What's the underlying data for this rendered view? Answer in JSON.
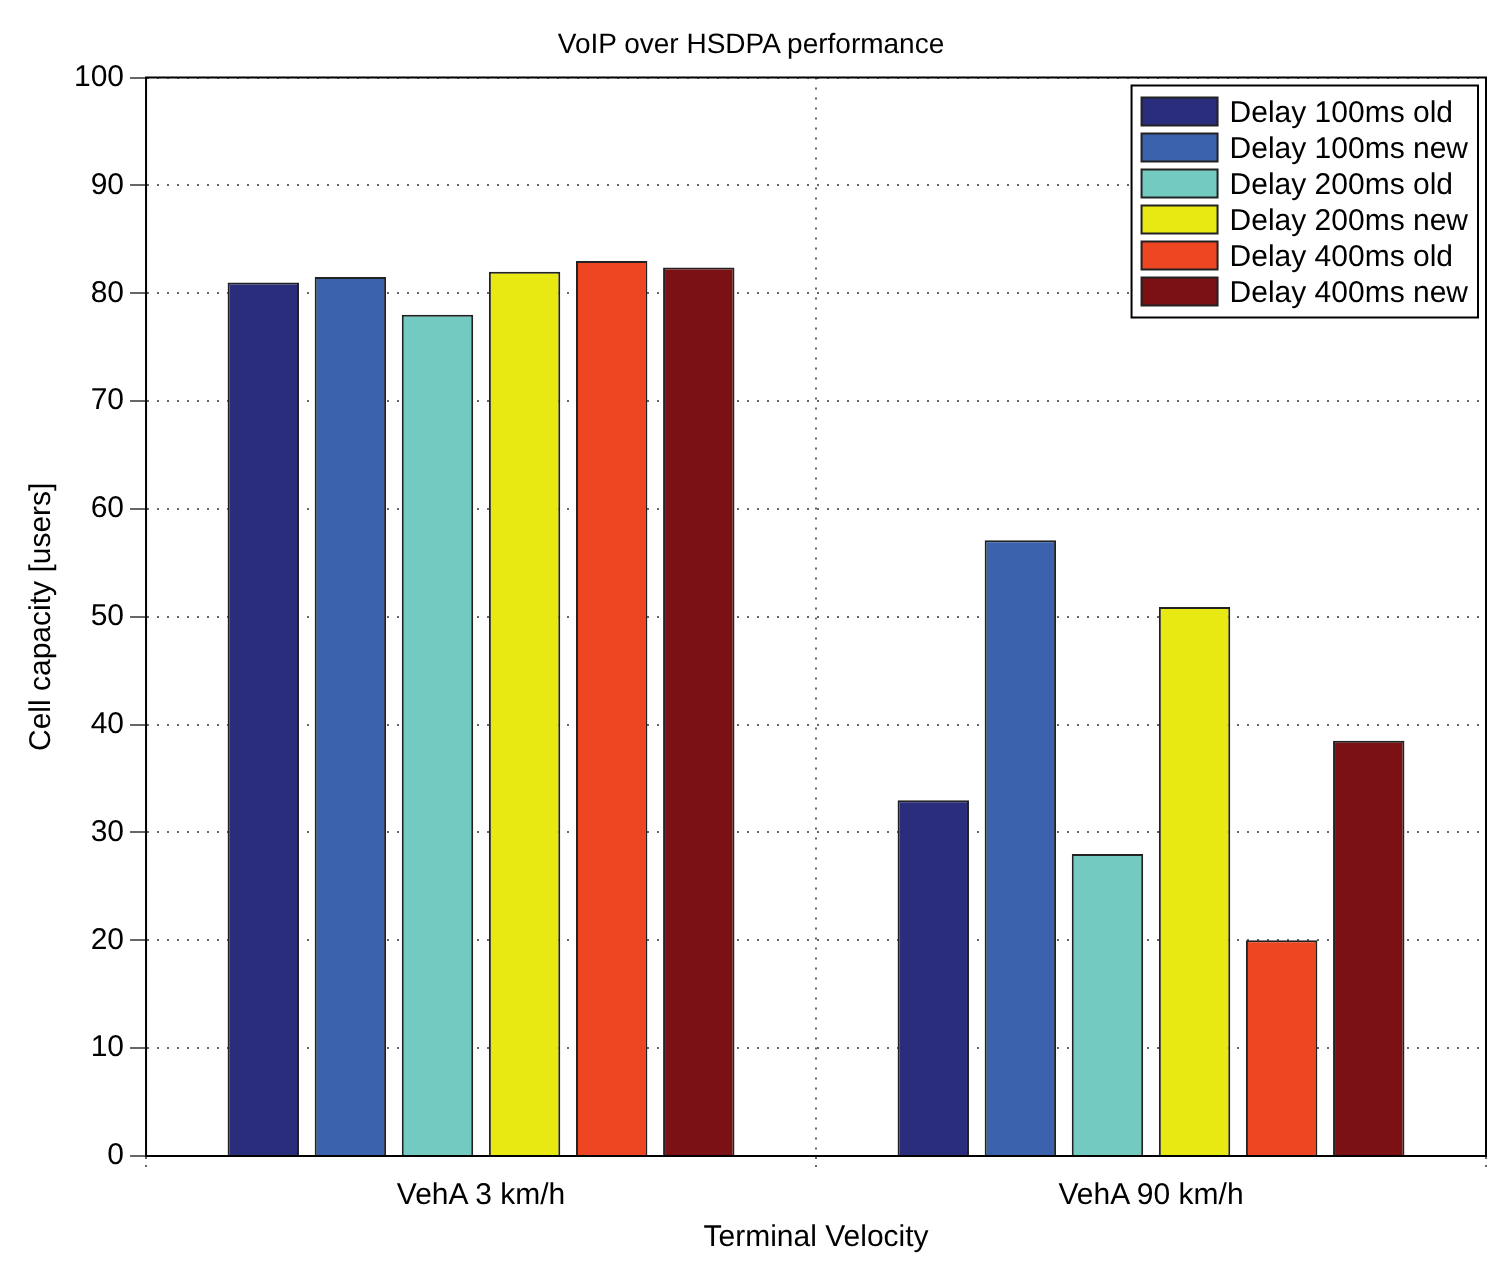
{
  "chart_data": {
    "type": "bar",
    "title": "VoIP over HSDPA performance",
    "xlabel": "Terminal Velocity",
    "ylabel": "Cell capacity [users]",
    "categories": [
      "VehA 3 km/h",
      "VehA 90 km/h"
    ],
    "series": [
      {
        "name": "Delay 100ms old",
        "color": "#2a2d7c",
        "values": [
          81,
          33
        ]
      },
      {
        "name": "Delay 100ms new",
        "color": "#3a62ad",
        "values": [
          81.5,
          57.1
        ]
      },
      {
        "name": "Delay 200ms old",
        "color": "#72cac1",
        "values": [
          78,
          28
        ]
      },
      {
        "name": "Delay 200ms new",
        "color": "#e8e813",
        "values": [
          82,
          50.9
        ]
      },
      {
        "name": "Delay 400ms old",
        "color": "#ee4622",
        "values": [
          83,
          20
        ]
      },
      {
        "name": "Delay 400ms new",
        "color": "#7b1115",
        "values": [
          82.4,
          38.5
        ]
      }
    ],
    "ylim": [
      0,
      100
    ],
    "yticks": [
      0,
      10,
      20,
      30,
      40,
      50,
      60,
      70,
      80,
      90,
      100
    ],
    "grid": true,
    "legend": "top right"
  }
}
